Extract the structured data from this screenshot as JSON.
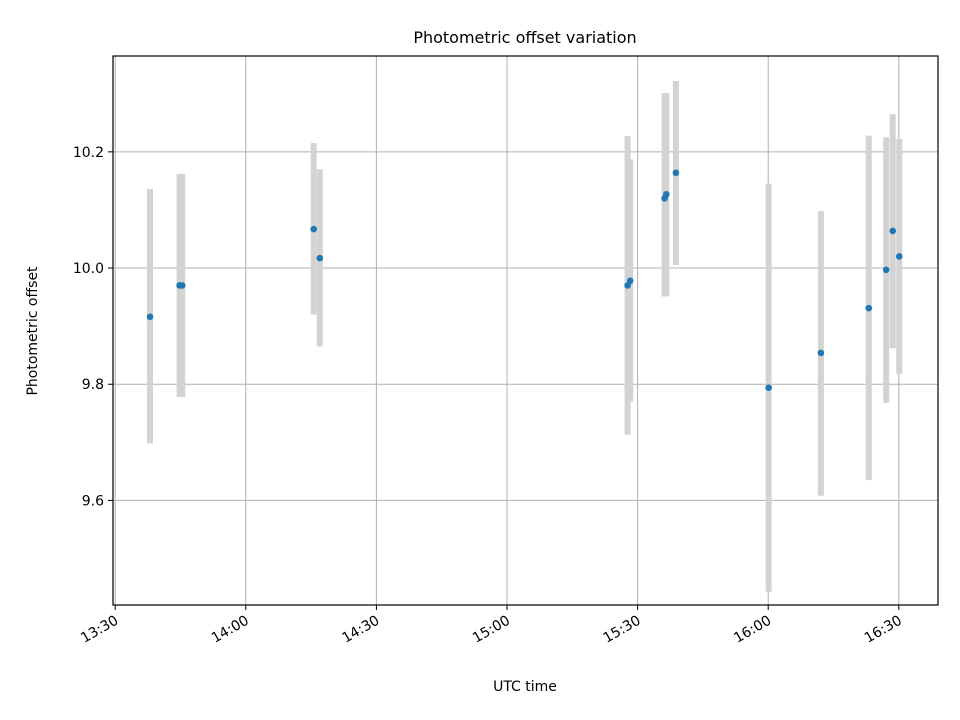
{
  "chart_data": {
    "type": "scatter",
    "title": "Photometric offset variation",
    "xlabel": "UTC time",
    "ylabel": "Photometric offset",
    "x_unit": "UTC time (hh:mm)",
    "xlim": [
      "13:29.5",
      "16:39.0"
    ],
    "ylim": [
      9.42,
      10.365
    ],
    "x_ticks": [
      "13:30",
      "14:00",
      "14:30",
      "15:00",
      "15:30",
      "16:00",
      "16:30"
    ],
    "y_ticks": [
      9.6,
      9.8,
      10.0,
      10.2
    ],
    "grid": true,
    "colors": {
      "point": "#1f77b4",
      "errorbar": "#d3d3d3",
      "grid": "#b0b0b0",
      "axes": "#000000"
    },
    "series": [
      {
        "points": [
          {
            "x": "13:38.0",
            "y": 9.916,
            "low": 9.698,
            "high": 10.136
          },
          {
            "x": "13:44.8",
            "y": 9.97,
            "low": 9.778,
            "high": 10.162
          },
          {
            "x": "13:45.4",
            "y": 9.97,
            "low": 9.778,
            "high": 10.162
          },
          {
            "x": "14:15.6",
            "y": 10.067,
            "low": 9.92,
            "high": 10.215
          },
          {
            "x": "14:17.0",
            "y": 10.017,
            "low": 9.865,
            "high": 10.17
          },
          {
            "x": "15:27.7",
            "y": 9.97,
            "low": 9.713,
            "high": 10.227
          },
          {
            "x": "15:28.3",
            "y": 9.978,
            "low": 9.77,
            "high": 10.187
          },
          {
            "x": "15:36.2",
            "y": 10.12,
            "low": 9.951,
            "high": 10.301
          },
          {
            "x": "15:36.6",
            "y": 10.127,
            "low": 9.951,
            "high": 10.301
          },
          {
            "x": "15:38.8",
            "y": 10.164,
            "low": 10.005,
            "high": 10.322
          },
          {
            "x": "16:00.1",
            "y": 9.794,
            "low": 9.443,
            "high": 10.145
          },
          {
            "x": "16:12.1",
            "y": 9.854,
            "low": 9.608,
            "high": 10.098
          },
          {
            "x": "16:23.1",
            "y": 9.931,
            "low": 9.635,
            "high": 10.228
          },
          {
            "x": "16:27.1",
            "y": 9.997,
            "low": 9.768,
            "high": 10.225
          },
          {
            "x": "16:28.6",
            "y": 10.064,
            "low": 9.862,
            "high": 10.265
          },
          {
            "x": "16:30.1",
            "y": 10.02,
            "low": 9.818,
            "high": 10.222
          }
        ]
      }
    ]
  }
}
